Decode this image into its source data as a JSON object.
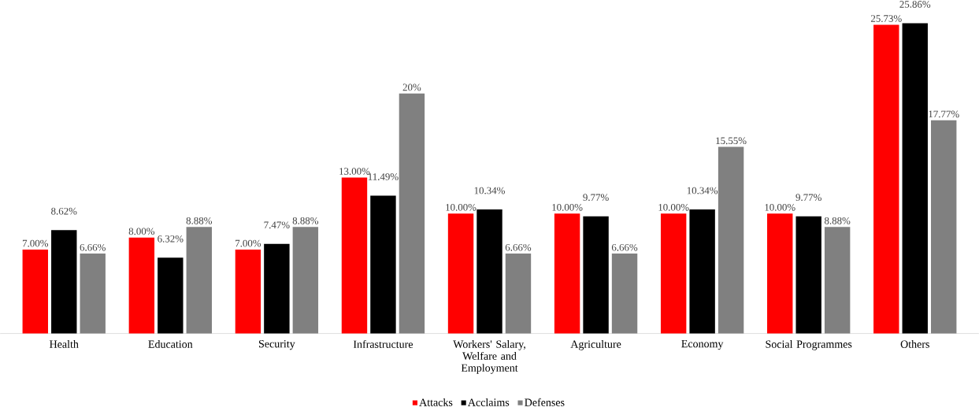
{
  "chart_data": {
    "type": "bar",
    "categories": [
      "Health",
      "Education",
      "Security",
      "Infrastructure",
      "Workers' Salary, Welfare and Employment",
      "Agriculture",
      "Economy",
      "Social Programmes",
      "Others"
    ],
    "series": [
      {
        "name": "Attacks",
        "color": "#ff0000",
        "values": [
          7.0,
          8.0,
          7.0,
          13.0,
          10.0,
          10.0,
          10.0,
          10.0,
          25.73
        ],
        "value_labels": [
          "7.00%",
          "8.00%",
          "7.00%",
          "13.00%",
          "10.00%",
          "10.00%",
          "10.00%",
          "10.00%",
          "25.73%"
        ]
      },
      {
        "name": "Acclaims",
        "color": "#000000",
        "values": [
          8.62,
          6.32,
          7.47,
          11.49,
          10.34,
          9.77,
          10.34,
          9.77,
          25.86
        ],
        "value_labels": [
          "8.62%",
          "6.32%",
          "7.47%",
          "11.49%",
          "10.34%",
          "9.77%",
          "10.34%",
          "9.77%",
          "25.86%"
        ]
      },
      {
        "name": "Defenses",
        "color": "#808080",
        "values": [
          6.66,
          8.88,
          8.88,
          20,
          6.66,
          6.66,
          15.55,
          8.88,
          17.77
        ],
        "value_labels": [
          "6.66%",
          "8.88%",
          "8.88%",
          "20%",
          "6.66%",
          "6.66%",
          "15.55%",
          "8.88%",
          "17.77%"
        ]
      }
    ],
    "legend": "bottom"
  }
}
